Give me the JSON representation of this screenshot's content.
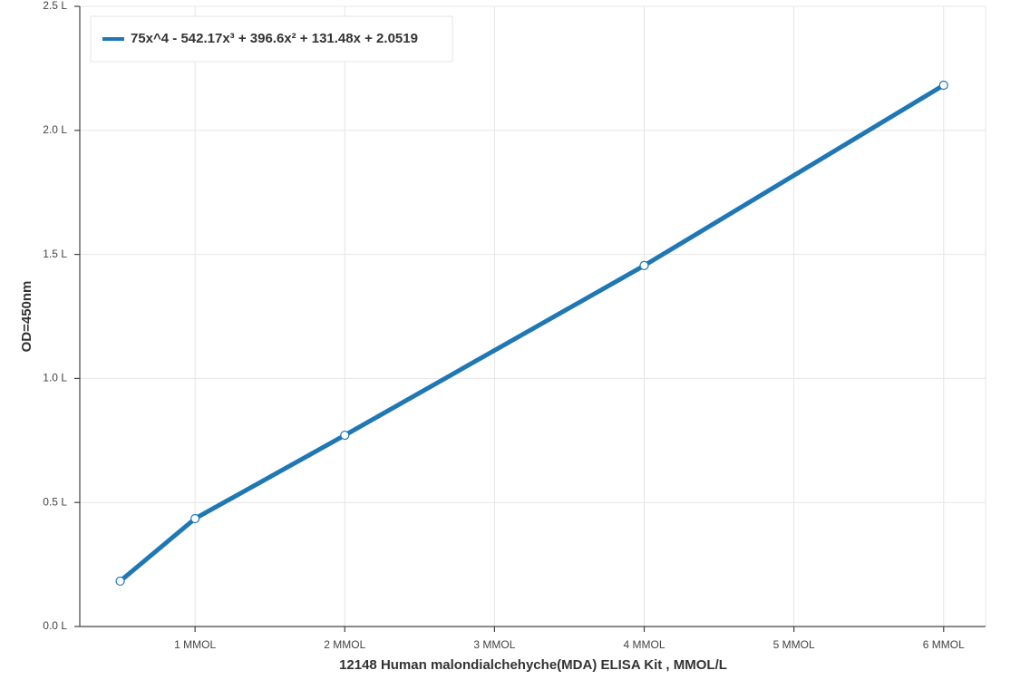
{
  "chart_data": {
    "type": "line",
    "x_label": "12148 Human malondialchehyche(MDA) ELISA Kit , MMOL/L",
    "y_label": "OD=450nm",
    "x": [
      0.5,
      1,
      2,
      4,
      6
    ],
    "series": [
      {
        "name": "75x^4 - 542.17x³ + 396.6x² + 131.48x + 2.0519",
        "color": "#1f77b4",
        "values": [
          0.183,
          0.435,
          0.771,
          1.455,
          2.182
        ]
      }
    ],
    "xlim": [
      0.23,
      6.28
    ],
    "xticks": [
      {
        "value": 1,
        "label": "1 MMOL"
      },
      {
        "value": 2,
        "label": "2 MMOL"
      },
      {
        "value": 3,
        "label": "3 MMOL"
      },
      {
        "value": 4,
        "label": "4 MMOL"
      },
      {
        "value": 5,
        "label": "5 MMOL"
      },
      {
        "value": 6,
        "label": "6 MMOL"
      }
    ],
    "ylim": [
      0,
      2.5
    ],
    "yticks": [
      {
        "value": 0,
        "label": "0.0 L"
      },
      {
        "value": 0.5,
        "label": "0.5 L"
      },
      {
        "value": 1,
        "label": "1.0 L"
      },
      {
        "value": 1.5,
        "label": "1.5 L"
      },
      {
        "value": 2,
        "label": "2.0 L"
      },
      {
        "value": 2.5,
        "label": "2.5 L"
      }
    ],
    "grid": true,
    "legend": "top-left"
  }
}
